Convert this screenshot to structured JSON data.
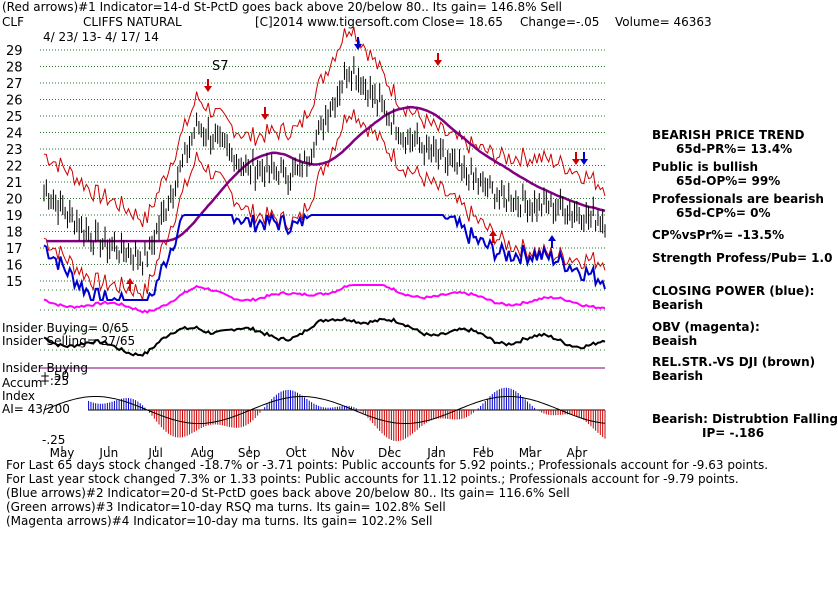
{
  "header": {
    "line1": "(Red arrows)#1 Indicator=14-d St-PctD goes back above 20/below 80.. Its gain= 146.8% Sell",
    "symbol": "CLF",
    "company": "CLIFFS NATURAL",
    "copyright": "[C]2014 www.tigersoft.com",
    "close_label": "Close=",
    "close_value": "18.65",
    "change_label": "Change=",
    "change_value": "-.05",
    "volume_label": "Volume=",
    "volume_value": "46363",
    "date_range": "4/ 23/ 13- 4/ 17/ 14"
  },
  "annotations": {
    "s7": "S7",
    "insider_buying_ratio": "Insider Buying= 0/65",
    "insider_selling_ratio": "Insider Selling= 27/65",
    "insider_buying": "Insider Buying",
    "accum_label": "Accum",
    "index_label": "Index",
    "ai_label": "AI= 43/200",
    "plus50": "+.50",
    "plus25": "+.25",
    "minus25": "-.25"
  },
  "right_panel": {
    "bearish_trend": "BEARISH PRICE TREND",
    "pr_pct": "65d-PR%= 13.4%",
    "public_bullish": "Public is bullish",
    "op_pct": "65d-OP%= 99%",
    "pros_bearish": "Professionals are bearish",
    "cp_pct": "65d-CP%= 0%",
    "cp_vs_pr": "CP%vsPr%= -13.5%",
    "strength": "Strength Profess/Pub= 1.0",
    "closing_power": "CLOSING POWER (blue):",
    "cp_state": "Bearish",
    "obv": "OBV (magenta):",
    "obv_state": "Beaish",
    "relstr": "REL.STR.-VS DJI (brown)",
    "relstr_state": "Bearish",
    "distribution": "Bearish: Distrubtion Falling",
    "ip": "IP= -.186"
  },
  "footer": {
    "line1": "For Last 65 days stock changed -18.7% or -3.71 points: Public accounts for 5.92 points.; Professionals account for -9.63 points.",
    "line2": "For Last year stock changed 7.3% or 1.33 points: Public accounts for 11.12 points.; Professionals account for -9.79 points.",
    "line3": "(Blue arrows)#2 Indicator=20-d St-PctD goes back above 20/below 80.. Its gain= 116.6% Sell",
    "line4": "(Green arrows)#3 Indicator=10-day RSQ ma turns. Its gain= 102.8% Sell",
    "line5": "(Magenta arrows)#4 Indicator=10-day ma turns. Its gain= 102.2% Sell"
  },
  "colors": {
    "price_bars": "#000000",
    "band": "#cc0000",
    "ma": "#800080",
    "closing_power": "#0000cc",
    "obv": "#ff00ff",
    "relstr": "#000000",
    "accum_pos": "#0000cc",
    "accum_neg": "#cc0000",
    "insider_line": "#800080"
  },
  "chart_data": {
    "type": "line",
    "title": "CLIFFS NATURAL",
    "y_ticks": [
      "29",
      "28",
      "27",
      "26",
      "25",
      "24",
      "23",
      "22",
      "21",
      "20",
      "19",
      "18",
      "17",
      "16",
      "15"
    ],
    "ylim": [
      15,
      29
    ],
    "x_ticks": [
      "May",
      "Jun",
      "Jul",
      "Aug",
      "Sep",
      "Oct",
      "Nov",
      "Dec",
      "Jan",
      "Feb",
      "Mar",
      "Apr"
    ],
    "grid": true,
    "series": [
      {
        "name": "Close",
        "x": [
          "May",
          "Jun",
          "Jul",
          "Aug",
          "Sep",
          "Oct",
          "Nov",
          "Dec",
          "Jan",
          "Feb",
          "Mar",
          "Apr"
        ],
        "values": [
          20.5,
          17.5,
          16.3,
          24.5,
          21.8,
          21.5,
          28.0,
          24.0,
          22.0,
          20.0,
          19.5,
          18.65
        ]
      }
    ]
  }
}
